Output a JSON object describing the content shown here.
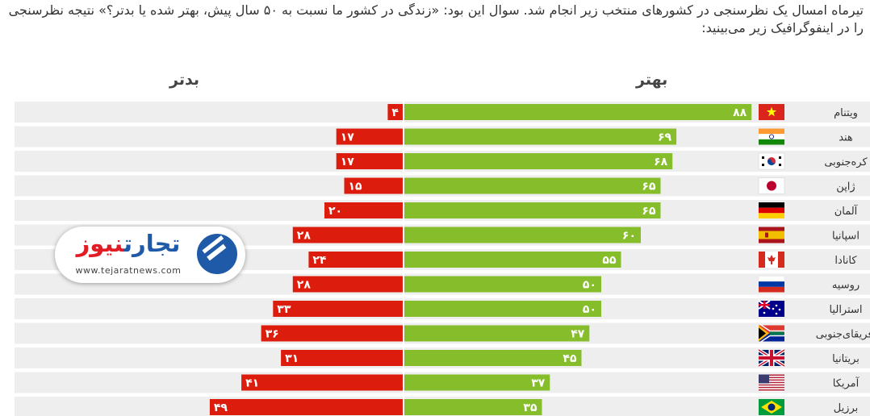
{
  "intro": "تیرماه امسال یک نظرسنجی در کشورهای منتخب زیر انجام شد. سوال این بود: «زندگی در کشور ما نسبت به ۵۰ سال پیش، بهتر شده یا بدتر؟» نتیجه نظرسنجی را در اینفوگرافیک زیر می‌بینید:",
  "logo": {
    "brand_part1": "تجارت",
    "brand_part2": "نیوز",
    "url": "www.tejaratnews.com",
    "icon": "tejaratnews-logo-icon"
  },
  "colors": {
    "better": "#86bd2b",
    "worse": "#dc1c0c",
    "row_band": "#eeeeee",
    "label": "#ffffff"
  },
  "chart_data": {
    "type": "bar",
    "orientation": "horizontal-diverging",
    "series": [
      {
        "name": "بهتر",
        "values": [
          88,
          69,
          68,
          65,
          65,
          60,
          55,
          50,
          50,
          47,
          45,
          37,
          35
        ]
      },
      {
        "name": "بدتر",
        "values": [
          4,
          17,
          17,
          15,
          20,
          28,
          24,
          28,
          33,
          36,
          31,
          41,
          49
        ]
      }
    ],
    "better_labels": [
      "۸۸",
      "۶۹",
      "۶۸",
      "۶۵",
      "۶۵",
      "۶۰",
      "۵۵",
      "۵۰",
      "۵۰",
      "۴۷",
      "۴۵",
      "۳۷",
      "۳۵"
    ],
    "worse_labels": [
      "۴",
      "۱۷",
      "۱۷",
      "۱۵",
      "۲۰",
      "۲۸",
      "۲۴",
      "۲۸",
      "۳۳",
      "۳۶",
      "۳۱",
      "۴۱",
      "۴۹"
    ],
    "countries": [
      {
        "name": "ویتنام",
        "flag": "vietnam-flag-icon"
      },
      {
        "name": "هند",
        "flag": "india-flag-icon"
      },
      {
        "name": "کره‌جنوبی",
        "flag": "south-korea-flag-icon"
      },
      {
        "name": "ژاپن",
        "flag": "japan-flag-icon"
      },
      {
        "name": "آلمان",
        "flag": "germany-flag-icon"
      },
      {
        "name": "اسپانیا",
        "flag": "spain-flag-icon"
      },
      {
        "name": "کانادا",
        "flag": "canada-flag-icon"
      },
      {
        "name": "روسیه",
        "flag": "russia-flag-icon"
      },
      {
        "name": "استرالیا",
        "flag": "australia-flag-icon"
      },
      {
        "name": "آفریقای‌جنوبی",
        "flag": "south-africa-flag-icon"
      },
      {
        "name": "بریتانیا",
        "flag": "uk-flag-icon"
      },
      {
        "name": "آمریکا",
        "flag": "usa-flag-icon"
      },
      {
        "name": "برزیل",
        "flag": "brazil-flag-icon"
      }
    ],
    "legend": "top",
    "grid": false
  }
}
